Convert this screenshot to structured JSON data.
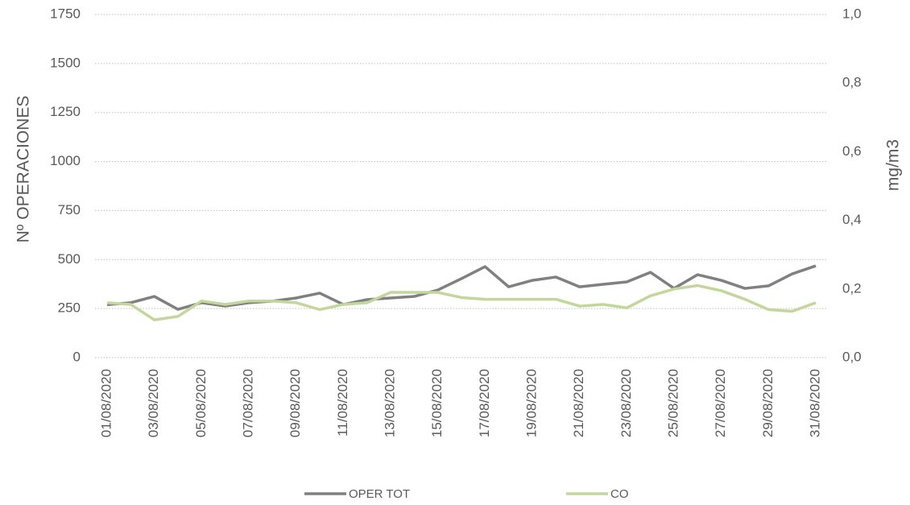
{
  "chart_data": {
    "type": "line",
    "categories": [
      "01/08/2020",
      null,
      "03/08/2020",
      null,
      "05/08/2020",
      null,
      "07/08/2020",
      null,
      "09/08/2020",
      null,
      "11/08/2020",
      null,
      "13/08/2020",
      null,
      "15/08/2020",
      null,
      "17/08/2020",
      null,
      "19/08/2020",
      null,
      "21/08/2020",
      null,
      "23/08/2020",
      null,
      "25/08/2020",
      null,
      "27/08/2020",
      null,
      "29/08/2020",
      null,
      "31/08/2020"
    ],
    "y_label": "Nº OPERACIONES",
    "y2_label": "mg/m3",
    "ylim": [
      0,
      1750
    ],
    "yticks": [
      0,
      250,
      500,
      750,
      1000,
      1250,
      1500,
      1750
    ],
    "y2lim": [
      0,
      1
    ],
    "y2ticks": [
      {
        "value": 0,
        "label": "0,0"
      },
      {
        "value": 0.2,
        "label": "0,2"
      },
      {
        "value": 0.4,
        "label": "0,4"
      },
      {
        "value": 0.6,
        "label": "0,6"
      },
      {
        "value": 0.8,
        "label": "0,8"
      },
      {
        "value": 1,
        "label": "1,0"
      }
    ],
    "grid": true,
    "legend": "bottom",
    "series": [
      {
        "name": "OPER TOT",
        "color": "#808080",
        "values": [
          270,
          280,
          312,
          246,
          280,
          263,
          280,
          288,
          304,
          329,
          271,
          296,
          304,
          312,
          345,
          403,
          464,
          361,
          394,
          411,
          361,
          374,
          386,
          435,
          353,
          423,
          394,
          353,
          366,
          427,
          468
        ]
      },
      {
        "name": "CO",
        "color": "#c4d79b",
        "axis": "y2",
        "values": [
          0.16,
          0.155,
          0.11,
          0.12,
          0.165,
          0.155,
          0.165,
          0.165,
          0.16,
          0.14,
          0.155,
          0.16,
          0.19,
          0.19,
          0.19,
          0.175,
          0.17,
          0.17,
          0.17,
          0.17,
          0.15,
          0.155,
          0.145,
          0.18,
          0.2,
          0.21,
          0.195,
          0.17,
          0.14,
          0.135,
          0.16
        ]
      }
    ]
  }
}
